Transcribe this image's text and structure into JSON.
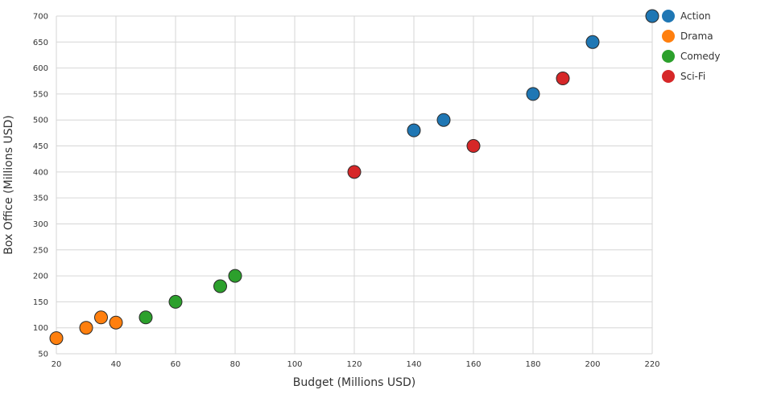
{
  "chart_data": {
    "type": "scatter",
    "title": "",
    "xlabel": "Budget (Millions USD)",
    "ylabel": "Box Office (Millions USD)",
    "xlim": [
      20,
      220
    ],
    "ylim": [
      50,
      700
    ],
    "xticks": [
      20,
      40,
      60,
      80,
      100,
      120,
      140,
      160,
      180,
      200,
      220
    ],
    "yticks": [
      50,
      100,
      150,
      200,
      250,
      300,
      350,
      400,
      450,
      500,
      550,
      600,
      650,
      700
    ],
    "grid": true,
    "legend": "top-right",
    "series": [
      {
        "name": "Action",
        "color": "#1f77b4",
        "points": [
          [
            140,
            480
          ],
          [
            150,
            500
          ],
          [
            180,
            550
          ],
          [
            200,
            650
          ],
          [
            220,
            700
          ]
        ]
      },
      {
        "name": "Drama",
        "color": "#ff7f0e",
        "points": [
          [
            20,
            80
          ],
          [
            30,
            100
          ],
          [
            35,
            120
          ],
          [
            40,
            110
          ]
        ]
      },
      {
        "name": "Comedy",
        "color": "#2ca02c",
        "points": [
          [
            50,
            120
          ],
          [
            60,
            150
          ],
          [
            75,
            180
          ],
          [
            80,
            200
          ]
        ]
      },
      {
        "name": "Sci-Fi",
        "color": "#d62728",
        "points": [
          [
            120,
            400
          ],
          [
            160,
            450
          ],
          [
            190,
            580
          ]
        ]
      }
    ]
  }
}
